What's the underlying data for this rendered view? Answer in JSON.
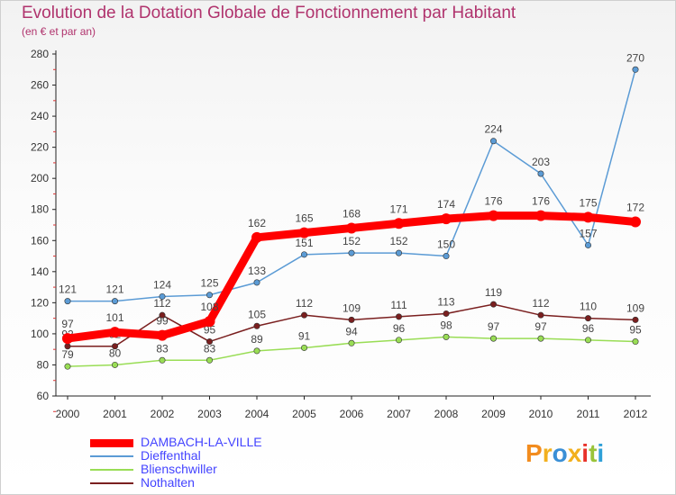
{
  "header": {
    "title": "Evolution de la Dotation Globale de Fonctionnement par Habitant",
    "subtitle": "(en € et par an)"
  },
  "logo": {
    "text": "Proxiti",
    "colors": [
      "#f28c1e",
      "#f2b01e",
      "#3a8fd6",
      "#f2b01e",
      "#e8312a",
      "#9ac43a",
      "#2fa0d8"
    ]
  },
  "chart_data": {
    "type": "line",
    "x": [
      "2000",
      "2001",
      "2002",
      "2003",
      "2004",
      "2005",
      "2006",
      "2007",
      "2008",
      "2009",
      "2010",
      "2011",
      "2012"
    ],
    "ylim": [
      60,
      280
    ],
    "yticks": [
      60,
      80,
      100,
      120,
      140,
      160,
      180,
      200,
      220,
      240,
      260,
      280
    ],
    "grid": false,
    "legend_position": "bottom-left",
    "series": [
      {
        "name": "DAMBACH-LA-VILLE",
        "color": "#ff0000",
        "values": [
          97,
          101,
          99,
          108,
          162,
          165,
          168,
          171,
          174,
          176,
          176,
          175,
          172
        ]
      },
      {
        "name": "Dieffenthal",
        "color": "#5b9bd5",
        "values": [
          121,
          121,
          124,
          125,
          133,
          151,
          152,
          152,
          150,
          224,
          203,
          157,
          270
        ]
      },
      {
        "name": "Blienschwiller",
        "color": "#99dd55",
        "values": [
          79,
          80,
          83,
          83,
          89,
          91,
          94,
          96,
          98,
          97,
          97,
          96,
          95
        ]
      },
      {
        "name": "Nothalten",
        "color": "#7a1f1f",
        "values": [
          92,
          92,
          112,
          95,
          105,
          112,
          109,
          111,
          113,
          119,
          112,
          110,
          109
        ]
      }
    ]
  }
}
